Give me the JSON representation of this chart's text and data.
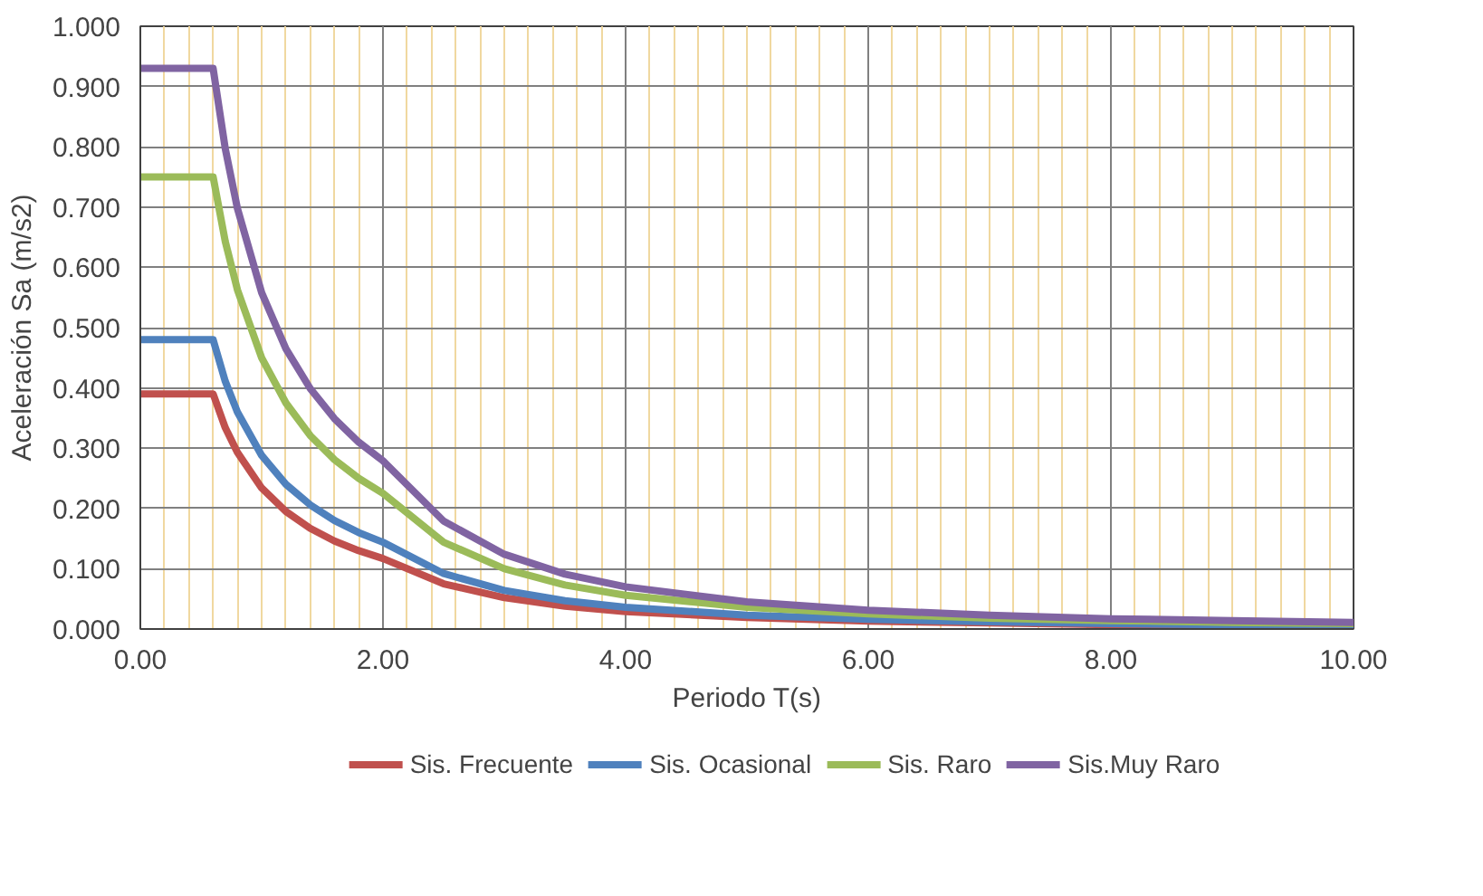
{
  "chart_data": {
    "type": "line",
    "xlabel": "Periodo T(s)",
    "ylabel": "Aceleración Sa (m/s2)",
    "x": [
      0,
      0.6,
      0.7,
      0.8,
      1.0,
      1.2,
      1.4,
      1.6,
      1.8,
      2.0,
      2.5,
      3,
      3.5,
      4,
      5,
      6,
      7,
      8,
      9,
      10
    ],
    "series": [
      {
        "name": "Sis. Frecuente",
        "color": "#c0504d",
        "values": [
          0.39,
          0.39,
          0.334,
          0.293,
          0.234,
          0.195,
          0.167,
          0.146,
          0.13,
          0.117,
          0.075,
          0.052,
          0.038,
          0.029,
          0.019,
          0.013,
          0.01,
          0.007,
          0.006,
          0.005
        ]
      },
      {
        "name": "Sis. Ocasional",
        "color": "#4f81bd",
        "values": [
          0.48,
          0.48,
          0.411,
          0.36,
          0.288,
          0.24,
          0.206,
          0.18,
          0.16,
          0.144,
          0.092,
          0.064,
          0.047,
          0.036,
          0.023,
          0.016,
          0.012,
          0.009,
          0.007,
          0.006
        ]
      },
      {
        "name": "Sis. Raro",
        "color": "#9bbb59",
        "values": [
          0.75,
          0.75,
          0.643,
          0.563,
          0.45,
          0.375,
          0.321,
          0.281,
          0.25,
          0.225,
          0.144,
          0.1,
          0.073,
          0.056,
          0.036,
          0.025,
          0.018,
          0.014,
          0.011,
          0.009
        ]
      },
      {
        "name": "Sis.Muy Raro",
        "color": "#8064a2",
        "values": [
          0.93,
          0.93,
          0.797,
          0.698,
          0.558,
          0.465,
          0.399,
          0.349,
          0.31,
          0.279,
          0.179,
          0.124,
          0.091,
          0.07,
          0.045,
          0.031,
          0.023,
          0.017,
          0.014,
          0.011
        ]
      }
    ],
    "xlim": [
      0,
      10
    ],
    "xticks": [
      {
        "value": 0,
        "label": "0.00"
      },
      {
        "value": 0.2,
        "label": null
      },
      {
        "value": 0.4,
        "label": null
      },
      {
        "value": 0.6,
        "label": null
      },
      {
        "value": 0.8,
        "label": null
      },
      {
        "value": 1,
        "label": null
      },
      {
        "value": 1.2,
        "label": null
      },
      {
        "value": 1.4,
        "label": null
      },
      {
        "value": 1.6,
        "label": null
      },
      {
        "value": 1.8,
        "label": null
      },
      {
        "value": 2,
        "label": "2.00"
      },
      {
        "value": 2.2,
        "label": null
      },
      {
        "value": 2.4,
        "label": null
      },
      {
        "value": 2.6,
        "label": null
      },
      {
        "value": 2.8,
        "label": null
      },
      {
        "value": 3,
        "label": null
      },
      {
        "value": 3.2,
        "label": null
      },
      {
        "value": 3.4,
        "label": null
      },
      {
        "value": 3.6,
        "label": null
      },
      {
        "value": 3.8,
        "label": null
      },
      {
        "value": 4,
        "label": "4.00"
      },
      {
        "value": 4.2,
        "label": null
      },
      {
        "value": 4.4,
        "label": null
      },
      {
        "value": 4.6,
        "label": null
      },
      {
        "value": 4.8,
        "label": null
      },
      {
        "value": 5,
        "label": null
      },
      {
        "value": 5.2,
        "label": null
      },
      {
        "value": 5.4,
        "label": null
      },
      {
        "value": 5.6,
        "label": null
      },
      {
        "value": 5.8,
        "label": null
      },
      {
        "value": 6,
        "label": "6.00"
      },
      {
        "value": 6.2,
        "label": null
      },
      {
        "value": 6.4,
        "label": null
      },
      {
        "value": 6.6,
        "label": null
      },
      {
        "value": 6.8,
        "label": null
      },
      {
        "value": 7,
        "label": null
      },
      {
        "value": 7.2,
        "label": null
      },
      {
        "value": 7.4,
        "label": null
      },
      {
        "value": 7.6,
        "label": null
      },
      {
        "value": 7.8,
        "label": null
      },
      {
        "value": 8,
        "label": "8.00"
      },
      {
        "value": 8.2,
        "label": null
      },
      {
        "value": 8.4,
        "label": null
      },
      {
        "value": 8.6,
        "label": null
      },
      {
        "value": 8.8,
        "label": null
      },
      {
        "value": 9,
        "label": null
      },
      {
        "value": 9.2,
        "label": null
      },
      {
        "value": 9.4,
        "label": null
      },
      {
        "value": 9.6,
        "label": null
      },
      {
        "value": 9.8,
        "label": null
      },
      {
        "value": 10,
        "label": "10.00"
      }
    ],
    "ylim": [
      0,
      1
    ],
    "yticks": [
      {
        "value": 0,
        "label": "0.000"
      },
      {
        "value": 0.1,
        "label": "0.100"
      },
      {
        "value": 0.2,
        "label": "0.200"
      },
      {
        "value": 0.3,
        "label": "0.300"
      },
      {
        "value": 0.4,
        "label": "0.400"
      },
      {
        "value": 0.5,
        "label": "0.500"
      },
      {
        "value": 0.6,
        "label": "0.600"
      },
      {
        "value": 0.7,
        "label": "0.700"
      },
      {
        "value": 0.8,
        "label": "0.800"
      },
      {
        "value": 0.9,
        "label": "0.900"
      },
      {
        "value": 1,
        "label": "1.000"
      }
    ],
    "grid": true,
    "legend": "bottom",
    "line_style": "solid"
  }
}
